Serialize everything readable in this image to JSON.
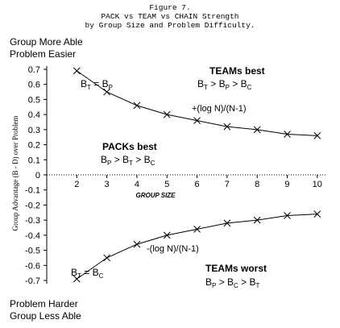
{
  "chart_data": {
    "type": "line",
    "title": "Figure 7.",
    "subtitle": [
      "PACK vs TEAM vs CHAIN Strength",
      "by Group Size and Problem Difficulty."
    ],
    "ylabel": "Group Advantage (B - D) over Problem",
    "xlabel": "GROUP SIZE",
    "corner_labels": [
      "Group More Able",
      "Problem Easier",
      "Problem Harder",
      "Group Less Able"
    ],
    "x": [
      2,
      3,
      4,
      5,
      6,
      7,
      8,
      9,
      10
    ],
    "series": [
      {
        "name": "+(log N)/(N-1)",
        "color": "#000000",
        "values": [
          0.69,
          0.55,
          0.46,
          0.4,
          0.36,
          0.32,
          0.3,
          0.27,
          0.26
        ]
      },
      {
        "name": "-(log N)/(N-1)",
        "color": "#000000",
        "values": [
          -0.69,
          -0.55,
          -0.46,
          -0.4,
          -0.36,
          -0.32,
          -0.3,
          -0.27,
          -0.26
        ]
      }
    ],
    "annotations": [
      {
        "heading": "TEAMs best",
        "parts": [
          "B",
          "T",
          " > B",
          "P",
          " > B",
          "C"
        ]
      },
      {
        "parts": [
          "B",
          "T",
          " = B",
          "P"
        ]
      },
      {
        "heading": "PACKs best",
        "parts": [
          "B",
          "P",
          " > B",
          "T",
          " > B",
          "C"
        ]
      },
      {
        "parts": [
          "B",
          "T",
          " = B",
          "C"
        ]
      },
      {
        "heading": "TEAMs worst",
        "parts": [
          "B",
          "P",
          " > B",
          "C",
          " > B",
          "T"
        ]
      }
    ],
    "xlim": [
      1,
      10.3
    ],
    "ylim": [
      -0.7,
      0.7
    ],
    "xticks": [
      2,
      3,
      4,
      5,
      6,
      7,
      8,
      9,
      10
    ],
    "yticks": [
      0.7,
      0.6,
      0.5,
      0.4,
      0.3,
      0.2,
      0.1,
      0,
      -0.1,
      -0.2,
      -0.3,
      -0.4,
      -0.5,
      -0.6,
      -0.7
    ]
  }
}
